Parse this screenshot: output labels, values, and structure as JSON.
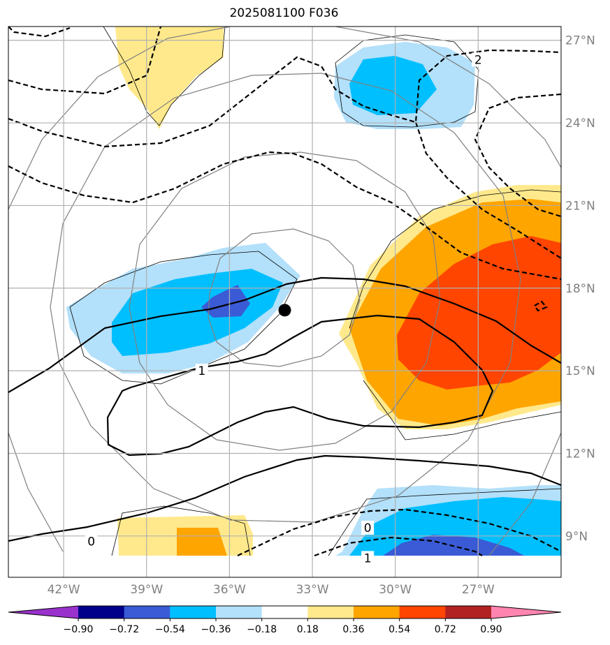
{
  "title": "2025081100 F036",
  "map": {
    "lon_range": [
      -44,
      -24
    ],
    "lat_range": [
      7.5,
      27.5
    ],
    "lon_ticks": [
      -42,
      -39,
      -36,
      -33,
      -30,
      -27
    ],
    "lon_tick_labels": [
      "42°W",
      "39°W",
      "36°W",
      "33°W",
      "30°W",
      "27°W"
    ],
    "lat_ticks": [
      9,
      12,
      15,
      18,
      21,
      24,
      27
    ],
    "lat_tick_labels": [
      "9°N",
      "12°N",
      "15°N",
      "18°N",
      "21°N",
      "24°N",
      "27°N"
    ],
    "storm_center": {
      "lon": -34.0,
      "lat": 17.2
    },
    "contour_labels": [
      {
        "text": "2",
        "lon": -27.0,
        "lat": 26.3
      },
      {
        "text": "1",
        "lon": -37.0,
        "lat": 15.0
      },
      {
        "text": "0",
        "lon": -41.0,
        "lat": 8.8
      },
      {
        "text": "0",
        "lon": -31.0,
        "lat": 9.3
      },
      {
        "text": "1",
        "lon": -31.0,
        "lat": 8.2
      }
    ],
    "colors": {
      "frame": "#000000",
      "grid": "#b0b0b0",
      "range_rings": "#808080",
      "shading_positive": [
        "#ffe98c",
        "#ffa500",
        "#ff4500"
      ],
      "shading_negative": [
        "#b3e0fa",
        "#00bfff",
        "#3a5bd5"
      ]
    }
  },
  "colorbar": {
    "colors": [
      "#9932cc",
      "#00008b",
      "#3a5bd5",
      "#00bfff",
      "#b3e0fa",
      "#ffffff",
      "#ffe98c",
      "#ffa500",
      "#ff4500",
      "#b22222",
      "#ff85b0"
    ],
    "tick_labels": [
      "−0.90",
      "−0.72",
      "−0.54",
      "−0.36",
      "−0.18",
      "0.18",
      "0.36",
      "0.54",
      "0.72",
      "0.90"
    ]
  }
}
